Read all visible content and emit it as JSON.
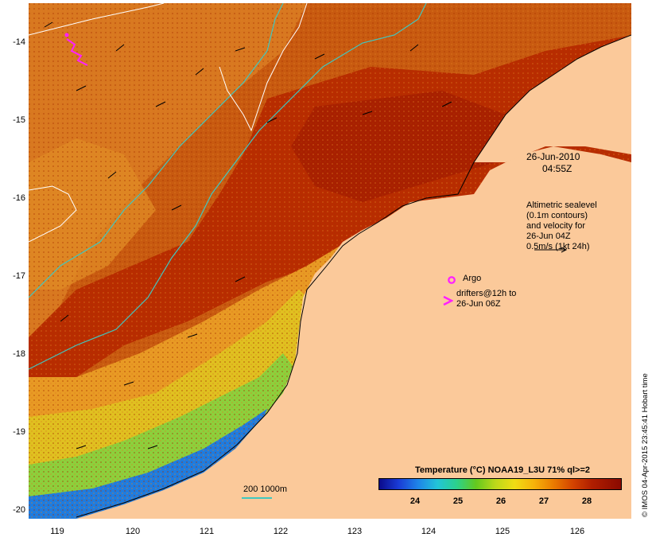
{
  "map": {
    "latitude_ticks": [
      "-14",
      "-15",
      "-16",
      "-17",
      "-18",
      "-19",
      "-20"
    ],
    "longitude_ticks": [
      "119",
      "120",
      "121",
      "122",
      "123",
      "124",
      "125",
      "126"
    ],
    "date": "26-Jun-2010",
    "time": "04:55Z",
    "altimetry_note": [
      "Altimetric sealevel",
      "(0.1m contours)",
      "and velocity for",
      "26-Jun 04Z"
    ],
    "velocity_scale": "0.5m/s (1kt 24h)",
    "argo_label": "Argo",
    "drifters_label": [
      "drifters@12h to",
      "26-Jun 06Z"
    ],
    "bathymetry_label": "200  1000m",
    "colorbar": {
      "title": "Temperature (°C) NOAA19_L3U 71% ql>=2",
      "tick_labels": [
        "24",
        "25",
        "26",
        "27",
        "28"
      ]
    },
    "credit": "© IMOS 04-Apr-2015 23:45:41 Hobart time",
    "colors": {
      "land": "#fbc99a",
      "warm_water": "#c04600",
      "cool_water": "#e8a020",
      "coastal_green": "#7cc83c",
      "coastal_blue": "#1e64d8",
      "isobath_200": "#40c8c0",
      "isobath_1000": "#ffffff",
      "drifter": "#ff20ff"
    }
  }
}
